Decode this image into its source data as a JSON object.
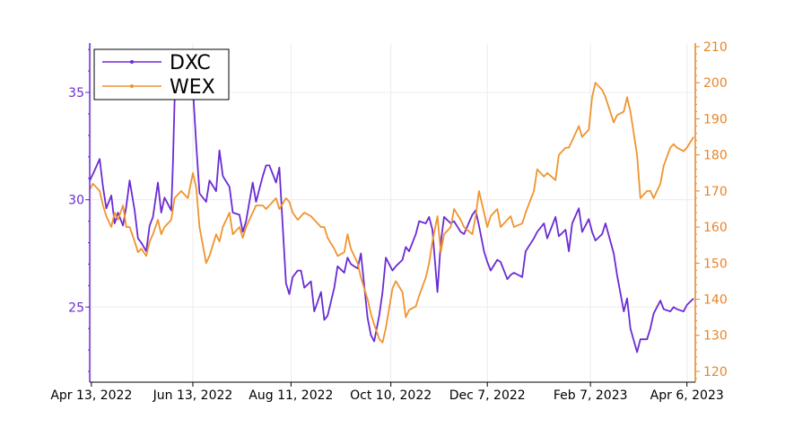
{
  "chart_data": {
    "type": "line",
    "title": "",
    "xlabel": "",
    "x_ticks": [
      "Apr 13, 2022",
      "Jun 13, 2022",
      "Aug 11, 2022",
      "Oct 10, 2022",
      "Dec 7, 2022",
      "Feb 7, 2023",
      "Apr 6, 2023"
    ],
    "x_range": [
      "2022-04-12",
      "2023-04-11"
    ],
    "y_left": {
      "label": "",
      "ylim": [
        21.5,
        37.3
      ],
      "ticks": [
        25,
        30,
        35
      ],
      "color": "#6a2bd4"
    },
    "y_right": {
      "label": "",
      "ylim": [
        117,
        211
      ],
      "ticks": [
        120,
        130,
        140,
        150,
        160,
        170,
        180,
        190,
        200,
        210
      ],
      "color": "#e8852a"
    },
    "grid": true,
    "legend_position": "top-left",
    "series": [
      {
        "name": "DXC",
        "axis": "left",
        "color": "#6a2bd4",
        "points": [
          [
            "2022-04-12",
            30.9
          ],
          [
            "2022-04-14",
            31.2
          ],
          [
            "2022-04-18",
            31.9
          ],
          [
            "2022-04-20",
            30.6
          ],
          [
            "2022-04-22",
            29.6
          ],
          [
            "2022-04-25",
            30.2
          ],
          [
            "2022-04-27",
            28.9
          ],
          [
            "2022-04-29",
            29.4
          ],
          [
            "2022-05-02",
            28.8
          ],
          [
            "2022-05-04",
            29.7
          ],
          [
            "2022-05-06",
            30.9
          ],
          [
            "2022-05-09",
            29.5
          ],
          [
            "2022-05-11",
            28.2
          ],
          [
            "2022-05-13",
            28.0
          ],
          [
            "2022-05-16",
            27.6
          ],
          [
            "2022-05-18",
            28.8
          ],
          [
            "2022-05-20",
            29.2
          ],
          [
            "2022-05-23",
            30.8
          ],
          [
            "2022-05-25",
            29.4
          ],
          [
            "2022-05-27",
            30.1
          ],
          [
            "2022-05-31",
            29.5
          ],
          [
            "2022-06-01",
            31.6
          ],
          [
            "2022-06-02",
            34.6
          ],
          [
            "2022-06-03",
            35.6
          ],
          [
            "2022-06-06",
            35.4
          ],
          [
            "2022-06-08",
            36.2
          ],
          [
            "2022-06-10",
            35.7
          ],
          [
            "2022-06-13",
            35.2
          ],
          [
            "2022-06-15",
            32.6
          ],
          [
            "2022-06-17",
            30.3
          ],
          [
            "2022-06-21",
            29.9
          ],
          [
            "2022-06-23",
            30.9
          ],
          [
            "2022-06-27",
            30.4
          ],
          [
            "2022-06-29",
            32.3
          ],
          [
            "2022-07-01",
            31.1
          ],
          [
            "2022-07-05",
            30.6
          ],
          [
            "2022-07-07",
            29.4
          ],
          [
            "2022-07-11",
            29.3
          ],
          [
            "2022-07-13",
            28.5
          ],
          [
            "2022-07-15",
            29.0
          ],
          [
            "2022-07-19",
            30.8
          ],
          [
            "2022-07-21",
            29.9
          ],
          [
            "2022-07-25",
            31.1
          ],
          [
            "2022-07-27",
            31.6
          ],
          [
            "2022-07-29",
            31.6
          ],
          [
            "2022-08-02",
            30.8
          ],
          [
            "2022-08-04",
            31.5
          ],
          [
            "2022-08-08",
            26.1
          ],
          [
            "2022-08-10",
            25.6
          ],
          [
            "2022-08-12",
            26.4
          ],
          [
            "2022-08-15",
            26.7
          ],
          [
            "2022-08-17",
            26.7
          ],
          [
            "2022-08-19",
            25.9
          ],
          [
            "2022-08-23",
            26.2
          ],
          [
            "2022-08-25",
            24.8
          ],
          [
            "2022-08-29",
            25.7
          ],
          [
            "2022-08-31",
            24.4
          ],
          [
            "2022-09-02",
            24.6
          ],
          [
            "2022-09-06",
            25.9
          ],
          [
            "2022-09-08",
            26.9
          ],
          [
            "2022-09-12",
            26.6
          ],
          [
            "2022-09-14",
            27.3
          ],
          [
            "2022-09-16",
            27.0
          ],
          [
            "2022-09-20",
            26.8
          ],
          [
            "2022-09-22",
            27.5
          ],
          [
            "2022-09-26",
            24.5
          ],
          [
            "2022-09-28",
            23.7
          ],
          [
            "2022-09-30",
            23.4
          ],
          [
            "2022-10-03",
            24.6
          ],
          [
            "2022-10-05",
            25.7
          ],
          [
            "2022-10-07",
            27.3
          ],
          [
            "2022-10-11",
            26.7
          ],
          [
            "2022-10-13",
            26.9
          ],
          [
            "2022-10-17",
            27.2
          ],
          [
            "2022-10-19",
            27.8
          ],
          [
            "2022-10-21",
            27.6
          ],
          [
            "2022-10-25",
            28.4
          ],
          [
            "2022-10-27",
            29.0
          ],
          [
            "2022-10-31",
            28.9
          ],
          [
            "2022-11-02",
            29.2
          ],
          [
            "2022-11-04",
            28.6
          ],
          [
            "2022-11-07",
            25.7
          ],
          [
            "2022-11-09",
            28.0
          ],
          [
            "2022-11-11",
            29.2
          ],
          [
            "2022-11-15",
            28.9
          ],
          [
            "2022-11-17",
            29.0
          ],
          [
            "2022-11-21",
            28.5
          ],
          [
            "2022-11-23",
            28.4
          ],
          [
            "2022-11-28",
            29.3
          ],
          [
            "2022-11-30",
            29.5
          ],
          [
            "2022-12-02",
            28.8
          ],
          [
            "2022-12-05",
            27.6
          ],
          [
            "2022-12-07",
            27.1
          ],
          [
            "2022-12-09",
            26.7
          ],
          [
            "2022-12-13",
            27.2
          ],
          [
            "2022-12-15",
            27.1
          ],
          [
            "2022-12-19",
            26.3
          ],
          [
            "2022-12-21",
            26.5
          ],
          [
            "2022-12-23",
            26.6
          ],
          [
            "2022-12-28",
            26.4
          ],
          [
            "2022-12-30",
            27.6
          ],
          [
            "2023-01-04",
            28.2
          ],
          [
            "2023-01-06",
            28.5
          ],
          [
            "2023-01-10",
            28.9
          ],
          [
            "2023-01-12",
            28.2
          ],
          [
            "2023-01-17",
            29.2
          ],
          [
            "2023-01-19",
            28.3
          ],
          [
            "2023-01-23",
            28.6
          ],
          [
            "2023-01-25",
            27.6
          ],
          [
            "2023-01-27",
            28.9
          ],
          [
            "2023-01-31",
            29.6
          ],
          [
            "2023-02-02",
            28.5
          ],
          [
            "2023-02-06",
            29.1
          ],
          [
            "2023-02-08",
            28.5
          ],
          [
            "2023-02-10",
            28.1
          ],
          [
            "2023-02-14",
            28.4
          ],
          [
            "2023-02-16",
            28.9
          ],
          [
            "2023-02-21",
            27.5
          ],
          [
            "2023-02-23",
            26.5
          ],
          [
            "2023-02-27",
            24.8
          ],
          [
            "2023-03-01",
            25.4
          ],
          [
            "2023-03-03",
            24.0
          ],
          [
            "2023-03-07",
            22.9
          ],
          [
            "2023-03-09",
            23.5
          ],
          [
            "2023-03-13",
            23.5
          ],
          [
            "2023-03-15",
            24.0
          ],
          [
            "2023-03-17",
            24.7
          ],
          [
            "2023-03-21",
            25.3
          ],
          [
            "2023-03-23",
            24.9
          ],
          [
            "2023-03-27",
            24.8
          ],
          [
            "2023-03-29",
            25.0
          ],
          [
            "2023-03-31",
            24.9
          ],
          [
            "2023-04-04",
            24.8
          ],
          [
            "2023-04-06",
            25.1
          ],
          [
            "2023-04-10",
            25.4
          ]
        ]
      },
      {
        "name": "WEX",
        "axis": "right",
        "color": "#f0942e",
        "points": [
          [
            "2022-04-12",
            170.5
          ],
          [
            "2022-04-14",
            172.0
          ],
          [
            "2022-04-18",
            170.0
          ],
          [
            "2022-04-20",
            166.0
          ],
          [
            "2022-04-22",
            163.0
          ],
          [
            "2022-04-25",
            160.0
          ],
          [
            "2022-04-27",
            164.0
          ],
          [
            "2022-04-29",
            162.0
          ],
          [
            "2022-05-02",
            166.0
          ],
          [
            "2022-05-04",
            160.0
          ],
          [
            "2022-05-06",
            160.0
          ],
          [
            "2022-05-09",
            156.0
          ],
          [
            "2022-05-11",
            153.0
          ],
          [
            "2022-05-13",
            154.0
          ],
          [
            "2022-05-16",
            152.0
          ],
          [
            "2022-05-18",
            156.0
          ],
          [
            "2022-05-20",
            158.0
          ],
          [
            "2022-05-23",
            162.0
          ],
          [
            "2022-05-25",
            158.0
          ],
          [
            "2022-05-27",
            160.0
          ],
          [
            "2022-05-31",
            162.0
          ],
          [
            "2022-06-02",
            168.0
          ],
          [
            "2022-06-06",
            170.0
          ],
          [
            "2022-06-08",
            169.0
          ],
          [
            "2022-06-10",
            168.0
          ],
          [
            "2022-06-13",
            175.0
          ],
          [
            "2022-06-15",
            171.0
          ],
          [
            "2022-06-17",
            160.0
          ],
          [
            "2022-06-21",
            150.0
          ],
          [
            "2022-06-23",
            152.0
          ],
          [
            "2022-06-27",
            158.0
          ],
          [
            "2022-06-29",
            156.0
          ],
          [
            "2022-07-01",
            160.0
          ],
          [
            "2022-07-05",
            164.0
          ],
          [
            "2022-07-07",
            158.0
          ],
          [
            "2022-07-11",
            160.0
          ],
          [
            "2022-07-13",
            157.0
          ],
          [
            "2022-07-15",
            160.0
          ],
          [
            "2022-07-19",
            164.0
          ],
          [
            "2022-07-21",
            166.0
          ],
          [
            "2022-07-25",
            166.0
          ],
          [
            "2022-07-27",
            165.0
          ],
          [
            "2022-07-29",
            166.0
          ],
          [
            "2022-08-02",
            168.0
          ],
          [
            "2022-08-04",
            165.0
          ],
          [
            "2022-08-08",
            168.0
          ],
          [
            "2022-08-10",
            167.0
          ],
          [
            "2022-08-12",
            164.0
          ],
          [
            "2022-08-15",
            162.0
          ],
          [
            "2022-08-17",
            163.0
          ],
          [
            "2022-08-19",
            164.0
          ],
          [
            "2022-08-23",
            163.0
          ],
          [
            "2022-08-25",
            162.0
          ],
          [
            "2022-08-29",
            160.0
          ],
          [
            "2022-08-31",
            160.0
          ],
          [
            "2022-09-02",
            157.0
          ],
          [
            "2022-09-06",
            154.0
          ],
          [
            "2022-09-08",
            152.0
          ],
          [
            "2022-09-12",
            153.0
          ],
          [
            "2022-09-14",
            158.0
          ],
          [
            "2022-09-16",
            154.0
          ],
          [
            "2022-09-20",
            150.0
          ],
          [
            "2022-09-22",
            146.0
          ],
          [
            "2022-09-26",
            140.0
          ],
          [
            "2022-09-28",
            136.0
          ],
          [
            "2022-09-30",
            133.0
          ],
          [
            "2022-10-03",
            129.0
          ],
          [
            "2022-10-05",
            128.0
          ],
          [
            "2022-10-07",
            132.0
          ],
          [
            "2022-10-11",
            143.0
          ],
          [
            "2022-10-13",
            145.0
          ],
          [
            "2022-10-17",
            142.0
          ],
          [
            "2022-10-19",
            135.0
          ],
          [
            "2022-10-21",
            137.0
          ],
          [
            "2022-10-25",
            138.0
          ],
          [
            "2022-10-27",
            141.0
          ],
          [
            "2022-10-31",
            146.0
          ],
          [
            "2022-11-02",
            150.0
          ],
          [
            "2022-11-04",
            156.0
          ],
          [
            "2022-11-07",
            163.0
          ],
          [
            "2022-11-09",
            153.0
          ],
          [
            "2022-11-11",
            158.0
          ],
          [
            "2022-11-15",
            160.0
          ],
          [
            "2022-11-17",
            165.0
          ],
          [
            "2022-11-21",
            162.0
          ],
          [
            "2022-11-23",
            160.0
          ],
          [
            "2022-11-28",
            158.0
          ],
          [
            "2022-11-30",
            163.0
          ],
          [
            "2022-12-02",
            170.0
          ],
          [
            "2022-12-05",
            164.0
          ],
          [
            "2022-12-07",
            160.0
          ],
          [
            "2022-12-09",
            163.0
          ],
          [
            "2022-12-13",
            165.0
          ],
          [
            "2022-12-15",
            160.0
          ],
          [
            "2022-12-19",
            162.0
          ],
          [
            "2022-12-21",
            163.0
          ],
          [
            "2022-12-23",
            160.0
          ],
          [
            "2022-12-28",
            161.0
          ],
          [
            "2022-12-30",
            164.0
          ],
          [
            "2023-01-04",
            170.0
          ],
          [
            "2023-01-06",
            176.0
          ],
          [
            "2023-01-10",
            174.0
          ],
          [
            "2023-01-12",
            175.0
          ],
          [
            "2023-01-17",
            173.0
          ],
          [
            "2023-01-19",
            180.0
          ],
          [
            "2023-01-23",
            182.0
          ],
          [
            "2023-01-25",
            182.0
          ],
          [
            "2023-01-27",
            184.0
          ],
          [
            "2023-01-31",
            188.0
          ],
          [
            "2023-02-02",
            185.0
          ],
          [
            "2023-02-06",
            187.0
          ],
          [
            "2023-02-08",
            196.0
          ],
          [
            "2023-02-10",
            200.0
          ],
          [
            "2023-02-14",
            198.0
          ],
          [
            "2023-02-16",
            196.0
          ],
          [
            "2023-02-21",
            189.0
          ],
          [
            "2023-02-23",
            191.0
          ],
          [
            "2023-02-27",
            192.0
          ],
          [
            "2023-03-01",
            196.0
          ],
          [
            "2023-03-03",
            192.0
          ],
          [
            "2023-03-07",
            180.0
          ],
          [
            "2023-03-09",
            168.0
          ],
          [
            "2023-03-13",
            170.0
          ],
          [
            "2023-03-15",
            170.0
          ],
          [
            "2023-03-17",
            168.0
          ],
          [
            "2023-03-21",
            172.0
          ],
          [
            "2023-03-23",
            177.0
          ],
          [
            "2023-03-27",
            182.0
          ],
          [
            "2023-03-29",
            183.0
          ],
          [
            "2023-03-31",
            182.0
          ],
          [
            "2023-04-04",
            181.0
          ],
          [
            "2023-04-06",
            182.0
          ],
          [
            "2023-04-10",
            185.0
          ]
        ]
      }
    ]
  }
}
